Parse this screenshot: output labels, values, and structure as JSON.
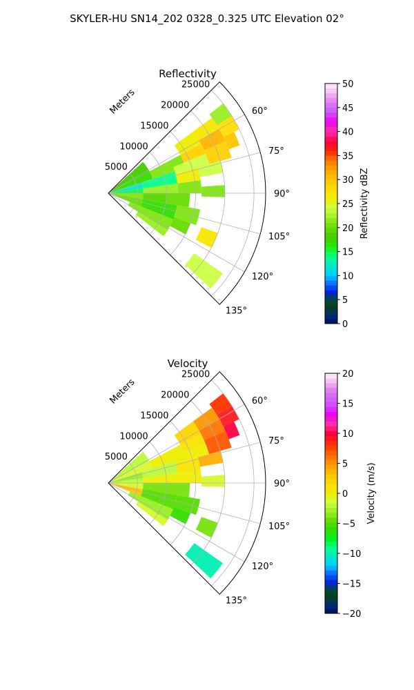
{
  "figure": {
    "suptitle": "SKYLER-HU  SN14_202  0328_0.325 UTC Elevation 02°"
  },
  "chart_data": [
    {
      "type": "heatmap",
      "projection": "polar-sector",
      "title": "Reflectivity",
      "radial_label": "Meters",
      "radial_ticks": [
        5000,
        10000,
        15000,
        20000,
        25000
      ],
      "radial_tick_labels": [
        "5000",
        "10000",
        "15000",
        "20000",
        "25000"
      ],
      "rlim": [
        0,
        27000
      ],
      "azimuth_range_deg": [
        45,
        135
      ],
      "azimuth_ticks": [
        60,
        75,
        90,
        105,
        120,
        135
      ],
      "azimuth_tick_labels": [
        "60°",
        "75°",
        "90°",
        "105°",
        "120°",
        "135°"
      ],
      "grid": true,
      "colorbar": {
        "label": "Reflectivity dBZ",
        "vmin": 0,
        "vmax": 50,
        "ticks": [
          0,
          5,
          10,
          15,
          20,
          25,
          30,
          35,
          40,
          45,
          50
        ],
        "tick_labels": [
          "0",
          "5",
          "10",
          "15",
          "20",
          "25",
          "30",
          "35",
          "40",
          "45",
          "50"
        ],
        "stops": [
          [
            0,
            "#000a66"
          ],
          [
            2,
            "#00307a"
          ],
          [
            3,
            "#0a3a1e"
          ],
          [
            5,
            "#004d33"
          ],
          [
            6.5,
            "#0020d8"
          ],
          [
            8,
            "#0a5cff"
          ],
          [
            10,
            "#00ccff"
          ],
          [
            12,
            "#00e8c8"
          ],
          [
            14,
            "#00ff88"
          ],
          [
            16,
            "#22ee00"
          ],
          [
            18,
            "#44cc00"
          ],
          [
            20,
            "#66dd00"
          ],
          [
            22,
            "#99ee22"
          ],
          [
            24,
            "#ccff44"
          ],
          [
            26,
            "#eeee00"
          ],
          [
            28,
            "#ffdd00"
          ],
          [
            30,
            "#ffc400"
          ],
          [
            32,
            "#ffa500"
          ],
          [
            34,
            "#ff7700"
          ],
          [
            36,
            "#ff2200"
          ],
          [
            38,
            "#ff0044"
          ],
          [
            40,
            "#ff33aa"
          ],
          [
            42,
            "#ee00ee"
          ],
          [
            44,
            "#cc55ff"
          ],
          [
            46,
            "#dd77ee"
          ],
          [
            48,
            "#f0bbf0"
          ],
          [
            50,
            "#fff0ff"
          ]
        ]
      },
      "echo_cells": [
        {
          "az": [
            48,
            62
          ],
          "r": [
            0.5,
            8
          ],
          "value": 18
        },
        {
          "az": [
            62,
            72
          ],
          "r": [
            0.5,
            8
          ],
          "value": 17
        },
        {
          "az": [
            72,
            82
          ],
          "r": [
            0.5,
            6
          ],
          "value": 12
        },
        {
          "az": [
            82,
            90
          ],
          "r": [
            0.5,
            6
          ],
          "value": 15
        },
        {
          "az": [
            90,
            100
          ],
          "r": [
            0.5,
            6
          ],
          "value": 21
        },
        {
          "az": [
            100,
            112
          ],
          "r": [
            0.5,
            6
          ],
          "value": 20
        },
        {
          "az": [
            62,
            72
          ],
          "r": [
            8,
            14
          ],
          "value": 21
        },
        {
          "az": [
            72,
            82
          ],
          "r": [
            6,
            12
          ],
          "value": 14
        },
        {
          "az": [
            82,
            90
          ],
          "r": [
            6,
            12
          ],
          "value": 22
        },
        {
          "az": [
            90,
            100
          ],
          "r": [
            6,
            10
          ],
          "value": 19
        },
        {
          "az": [
            100,
            112
          ],
          "r": [
            6,
            12
          ],
          "value": 17
        },
        {
          "az": [
            112,
            122
          ],
          "r": [
            4,
            12
          ],
          "value": 21
        },
        {
          "az": [
            122,
            128
          ],
          "r": [
            6,
            12
          ],
          "value": 22
        },
        {
          "az": [
            54,
            62
          ],
          "r": [
            14,
            18
          ],
          "value": 26
        },
        {
          "az": [
            62,
            68
          ],
          "r": [
            14,
            18
          ],
          "value": 29
        },
        {
          "az": [
            68,
            74
          ],
          "r": [
            12,
            18
          ],
          "value": 24
        },
        {
          "az": [
            74,
            82
          ],
          "r": [
            12,
            16
          ],
          "value": 26
        },
        {
          "az": [
            82,
            90
          ],
          "r": [
            12,
            16
          ],
          "value": 21
        },
        {
          "az": [
            90,
            100
          ],
          "r": [
            10,
            14
          ],
          "value": 20
        },
        {
          "az": [
            100,
            110
          ],
          "r": [
            12,
            16
          ],
          "value": 21
        },
        {
          "az": [
            110,
            118
          ],
          "r": [
            12,
            15
          ],
          "value": 20
        },
        {
          "az": [
            54,
            60
          ],
          "r": [
            18,
            22
          ],
          "value": 27
        },
        {
          "az": [
            60,
            66
          ],
          "r": [
            18,
            22
          ],
          "value": 31
        },
        {
          "az": [
            66,
            74
          ],
          "r": [
            18,
            22
          ],
          "value": 29
        },
        {
          "az": [
            74,
            80
          ],
          "r": [
            16,
            20
          ],
          "value": 24
        },
        {
          "az": [
            86,
            92
          ],
          "r": [
            16,
            20
          ],
          "value": 21
        },
        {
          "az": [
            52,
            58
          ],
          "r": [
            22,
            25
          ],
          "value": 22
        },
        {
          "az": [
            58,
            64
          ],
          "r": [
            22,
            25
          ],
          "value": 28
        },
        {
          "az": [
            64,
            70
          ],
          "r": [
            22,
            24
          ],
          "value": 30
        },
        {
          "az": [
            110,
            118
          ],
          "r": [
            17,
            20
          ],
          "value": 27
        },
        {
          "az": [
            125,
            133
          ],
          "r": [
            18,
            24
          ],
          "value": 24
        }
      ]
    },
    {
      "type": "heatmap",
      "projection": "polar-sector",
      "title": "Velocity",
      "radial_label": "Meters",
      "radial_ticks": [
        5000,
        10000,
        15000,
        20000,
        25000
      ],
      "radial_tick_labels": [
        "5000",
        "10000",
        "15000",
        "20000",
        "25000"
      ],
      "rlim": [
        0,
        27000
      ],
      "azimuth_range_deg": [
        45,
        135
      ],
      "azimuth_ticks": [
        60,
        75,
        90,
        105,
        120,
        135
      ],
      "azimuth_tick_labels": [
        "60°",
        "75°",
        "90°",
        "105°",
        "120°",
        "135°"
      ],
      "grid": true,
      "colorbar": {
        "label": "Velocity (m/s)",
        "vmin": -20,
        "vmax": 20,
        "ticks": [
          -20,
          -15,
          -10,
          -5,
          0,
          5,
          10,
          15,
          20
        ],
        "tick_labels": [
          "−20",
          "−15",
          "−10",
          "−5",
          "0",
          "5",
          "10",
          "15",
          "20"
        ],
        "stops": [
          [
            -20,
            "#000a66"
          ],
          [
            -18.5,
            "#00307a"
          ],
          [
            -17.5,
            "#0a3a1e"
          ],
          [
            -16,
            "#004d33"
          ],
          [
            -15,
            "#0020d8"
          ],
          [
            -13.5,
            "#0a5cff"
          ],
          [
            -12,
            "#00ccff"
          ],
          [
            -10.5,
            "#00e8c8"
          ],
          [
            -9,
            "#00ff88"
          ],
          [
            -7.5,
            "#00ee22"
          ],
          [
            -6,
            "#33dd00"
          ],
          [
            -4.5,
            "#66dd00"
          ],
          [
            -3,
            "#99ee22"
          ],
          [
            -1.5,
            "#ccff44"
          ],
          [
            0,
            "#eeee00"
          ],
          [
            1.5,
            "#ffdd00"
          ],
          [
            3,
            "#ffc400"
          ],
          [
            4.5,
            "#ffa500"
          ],
          [
            6,
            "#ff7700"
          ],
          [
            8,
            "#ff3300"
          ],
          [
            10,
            "#ff0044"
          ],
          [
            11.5,
            "#ff33aa"
          ],
          [
            13,
            "#ee00ee"
          ],
          [
            15,
            "#cc55ff"
          ],
          [
            17,
            "#dd77ee"
          ],
          [
            18.5,
            "#f0bbf0"
          ],
          [
            20,
            "#fff0ff"
          ]
        ]
      },
      "echo_cells": [
        {
          "az": [
            48,
            62
          ],
          "r": [
            0.5,
            8
          ],
          "value": -2
        },
        {
          "az": [
            62,
            72
          ],
          "r": [
            0.5,
            8
          ],
          "value": -1
        },
        {
          "az": [
            72,
            82
          ],
          "r": [
            0.5,
            6
          ],
          "value": -3
        },
        {
          "az": [
            82,
            90
          ],
          "r": [
            0.5,
            6
          ],
          "value": -2
        },
        {
          "az": [
            90,
            100
          ],
          "r": [
            0.5,
            6
          ],
          "value": -1
        },
        {
          "az": [
            100,
            112
          ],
          "r": [
            0.5,
            6
          ],
          "value": 3
        },
        {
          "az": [
            62,
            72
          ],
          "r": [
            8,
            14
          ],
          "value": 0
        },
        {
          "az": [
            72,
            82
          ],
          "r": [
            6,
            12
          ],
          "value": -2
        },
        {
          "az": [
            82,
            90
          ],
          "r": [
            6,
            12
          ],
          "value": 0
        },
        {
          "az": [
            90,
            100
          ],
          "r": [
            6,
            10
          ],
          "value": -4
        },
        {
          "az": [
            100,
            112
          ],
          "r": [
            6,
            12
          ],
          "value": -5
        },
        {
          "az": [
            112,
            122
          ],
          "r": [
            4,
            12
          ],
          "value": -3
        },
        {
          "az": [
            122,
            128
          ],
          "r": [
            6,
            12
          ],
          "value": -1
        },
        {
          "az": [
            54,
            62
          ],
          "r": [
            14,
            18
          ],
          "value": 2
        },
        {
          "az": [
            62,
            68
          ],
          "r": [
            14,
            18
          ],
          "value": 1
        },
        {
          "az": [
            68,
            74
          ],
          "r": [
            12,
            18
          ],
          "value": 0
        },
        {
          "az": [
            74,
            82
          ],
          "r": [
            12,
            16
          ],
          "value": 1
        },
        {
          "az": [
            82,
            90
          ],
          "r": [
            12,
            16
          ],
          "value": 0
        },
        {
          "az": [
            90,
            100
          ],
          "r": [
            10,
            14
          ],
          "value": -4
        },
        {
          "az": [
            100,
            110
          ],
          "r": [
            12,
            16
          ],
          "value": -5
        },
        {
          "az": [
            110,
            118
          ],
          "r": [
            12,
            15
          ],
          "value": -6
        },
        {
          "az": [
            54,
            60
          ],
          "r": [
            18,
            22
          ],
          "value": 5
        },
        {
          "az": [
            60,
            66
          ],
          "r": [
            18,
            22
          ],
          "value": 6
        },
        {
          "az": [
            66,
            74
          ],
          "r": [
            18,
            22
          ],
          "value": 7
        },
        {
          "az": [
            74,
            80
          ],
          "r": [
            16,
            20
          ],
          "value": 4
        },
        {
          "az": [
            86,
            92
          ],
          "r": [
            16,
            20
          ],
          "value": -1
        },
        {
          "az": [
            52,
            58
          ],
          "r": [
            22,
            25
          ],
          "value": 8
        },
        {
          "az": [
            58,
            64
          ],
          "r": [
            22,
            25
          ],
          "value": 9
        },
        {
          "az": [
            64,
            70
          ],
          "r": [
            22,
            24
          ],
          "value": 10
        },
        {
          "az": [
            110,
            118
          ],
          "r": [
            17,
            20
          ],
          "value": -4
        },
        {
          "az": [
            125,
            133
          ],
          "r": [
            18,
            24
          ],
          "value": -10
        }
      ]
    }
  ]
}
